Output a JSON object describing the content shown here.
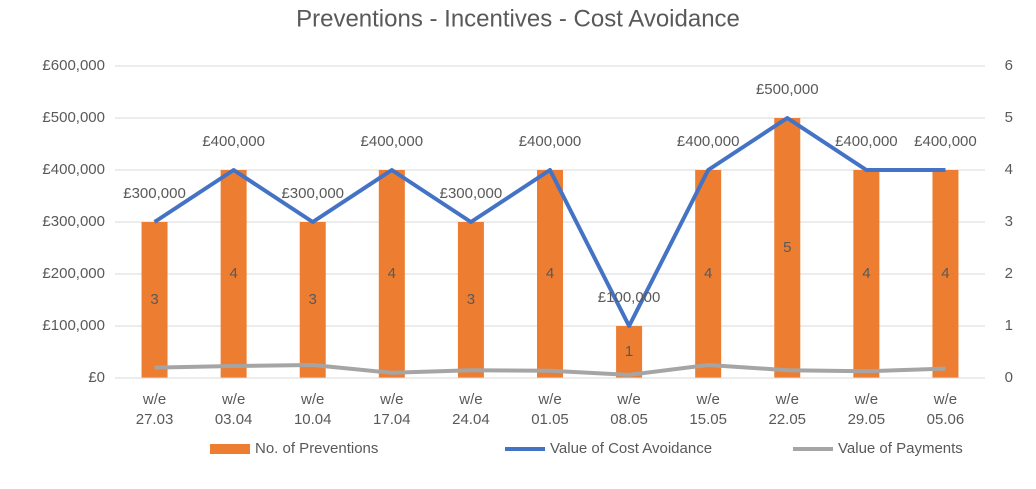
{
  "chart_data": {
    "type": "combo",
    "title": "Preventions - Incentives - Cost Avoidance",
    "categories": [
      "w/e 27.03",
      "w/e 03.04",
      "w/e 10.04",
      "w/e 17.04",
      "w/e 24.04",
      "w/e 01.05",
      "w/e 08.05",
      "w/e 15.05",
      "w/e 22.05",
      "w/e 29.05",
      "w/e 05.06"
    ],
    "series": [
      {
        "name": "No. of Preventions",
        "type": "bar",
        "axis": "y2",
        "color": "#ed7d31",
        "values": [
          3,
          4,
          3,
          4,
          3,
          4,
          1,
          4,
          5,
          4,
          4
        ]
      },
      {
        "name": "Value of Cost Avoidance",
        "type": "line",
        "color": "#4472c4",
        "values": [
          300000,
          400000,
          300000,
          400000,
          300000,
          400000,
          100000,
          400000,
          500000,
          400000,
          400000
        ],
        "value_labels": [
          "£300,000",
          "£400,000",
          "£300,000",
          "£400,000",
          "£300,000",
          "£400,000",
          "£100,000",
          "£400,000",
          "£500,000",
          "£400,000",
          "£400,000"
        ]
      },
      {
        "name": "Value of Payments",
        "type": "line",
        "color": "#a5a5a5",
        "values": [
          20000,
          23000,
          25000,
          10000,
          15000,
          14000,
          6000,
          25000,
          15000,
          13000,
          18000
        ]
      }
    ],
    "ylim": [
      0,
      600000
    ],
    "yticks": [
      {
        "value": 0,
        "label": "£0"
      },
      {
        "value": 100000,
        "label": "£100,000"
      },
      {
        "value": 200000,
        "label": "£200,000"
      },
      {
        "value": 300000,
        "label": "£300,000"
      },
      {
        "value": 400000,
        "label": "£400,000"
      },
      {
        "value": 500000,
        "label": "£500,000"
      },
      {
        "value": 600000,
        "label": "£600,000"
      }
    ],
    "y2lim": [
      0,
      6
    ],
    "y2ticks": [
      0,
      1,
      2,
      3,
      4,
      5,
      6
    ],
    "grid": true,
    "legend": "bottom"
  }
}
